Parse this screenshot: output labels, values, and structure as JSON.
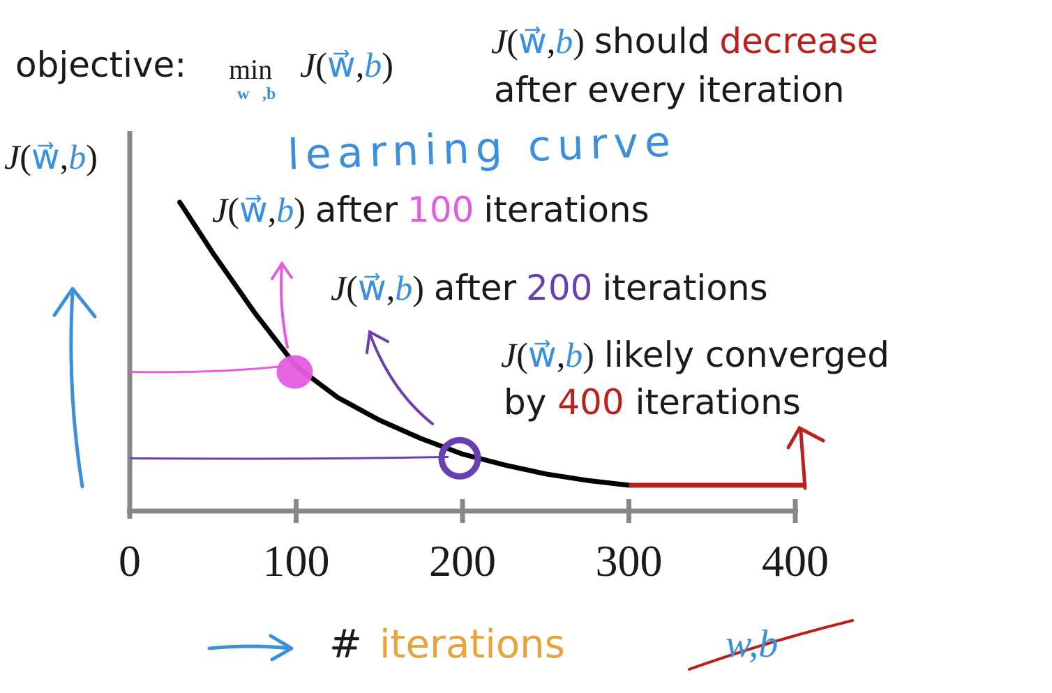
{
  "colors": {
    "axis": "#888888",
    "curve": "#000000",
    "blue": "#3b8fdc",
    "pink": "#e55be0",
    "purple": "#6a3fb0",
    "red": "#b8211c",
    "orange": "#e8a33a",
    "text": "#1a1a1a"
  },
  "objective": {
    "prefix": "objective:",
    "min": "min",
    "sub": "w⃗,b"
  },
  "cost_symbol": {
    "J": "J",
    "open": "(",
    "w": "w⃗",
    "comma": ",",
    "b": "b",
    "close": ")"
  },
  "note_top": {
    "line1_mid": "should",
    "line1_word": "decrease",
    "line2": "after every iteration"
  },
  "handwritten_title": "learning curve",
  "annotations": {
    "a100": {
      "pre": "after",
      "num": "100",
      "post": "iterations"
    },
    "a200": {
      "pre": "after",
      "num": "200",
      "post": "iterations"
    },
    "a400": {
      "line1": "likely converged",
      "by": "by",
      "num": "400",
      "post": "iterations"
    }
  },
  "bottom": {
    "hash": "#",
    "label": "iterations",
    "crossed": "w,b"
  },
  "chart_data": {
    "type": "line",
    "x": [
      30,
      50,
      75,
      100,
      125,
      150,
      175,
      200,
      225,
      250,
      275,
      300
    ],
    "y": [
      10.0,
      8.2,
      6.1,
      4.2,
      3.1,
      2.3,
      1.65,
      1.1,
      0.72,
      0.4,
      0.17,
      0.0
    ],
    "flat_segment": {
      "x": [
        300,
        400
      ],
      "y": [
        0.0,
        0.0
      ]
    },
    "highlighted_points": [
      {
        "x": 100,
        "y": 4.2
      },
      {
        "x": 200,
        "y": 1.1
      }
    ],
    "xticks": [
      0,
      100,
      200,
      300,
      400
    ],
    "xlim": [
      0,
      420
    ],
    "ylim": [
      0,
      10.5
    ],
    "grid": false
  }
}
